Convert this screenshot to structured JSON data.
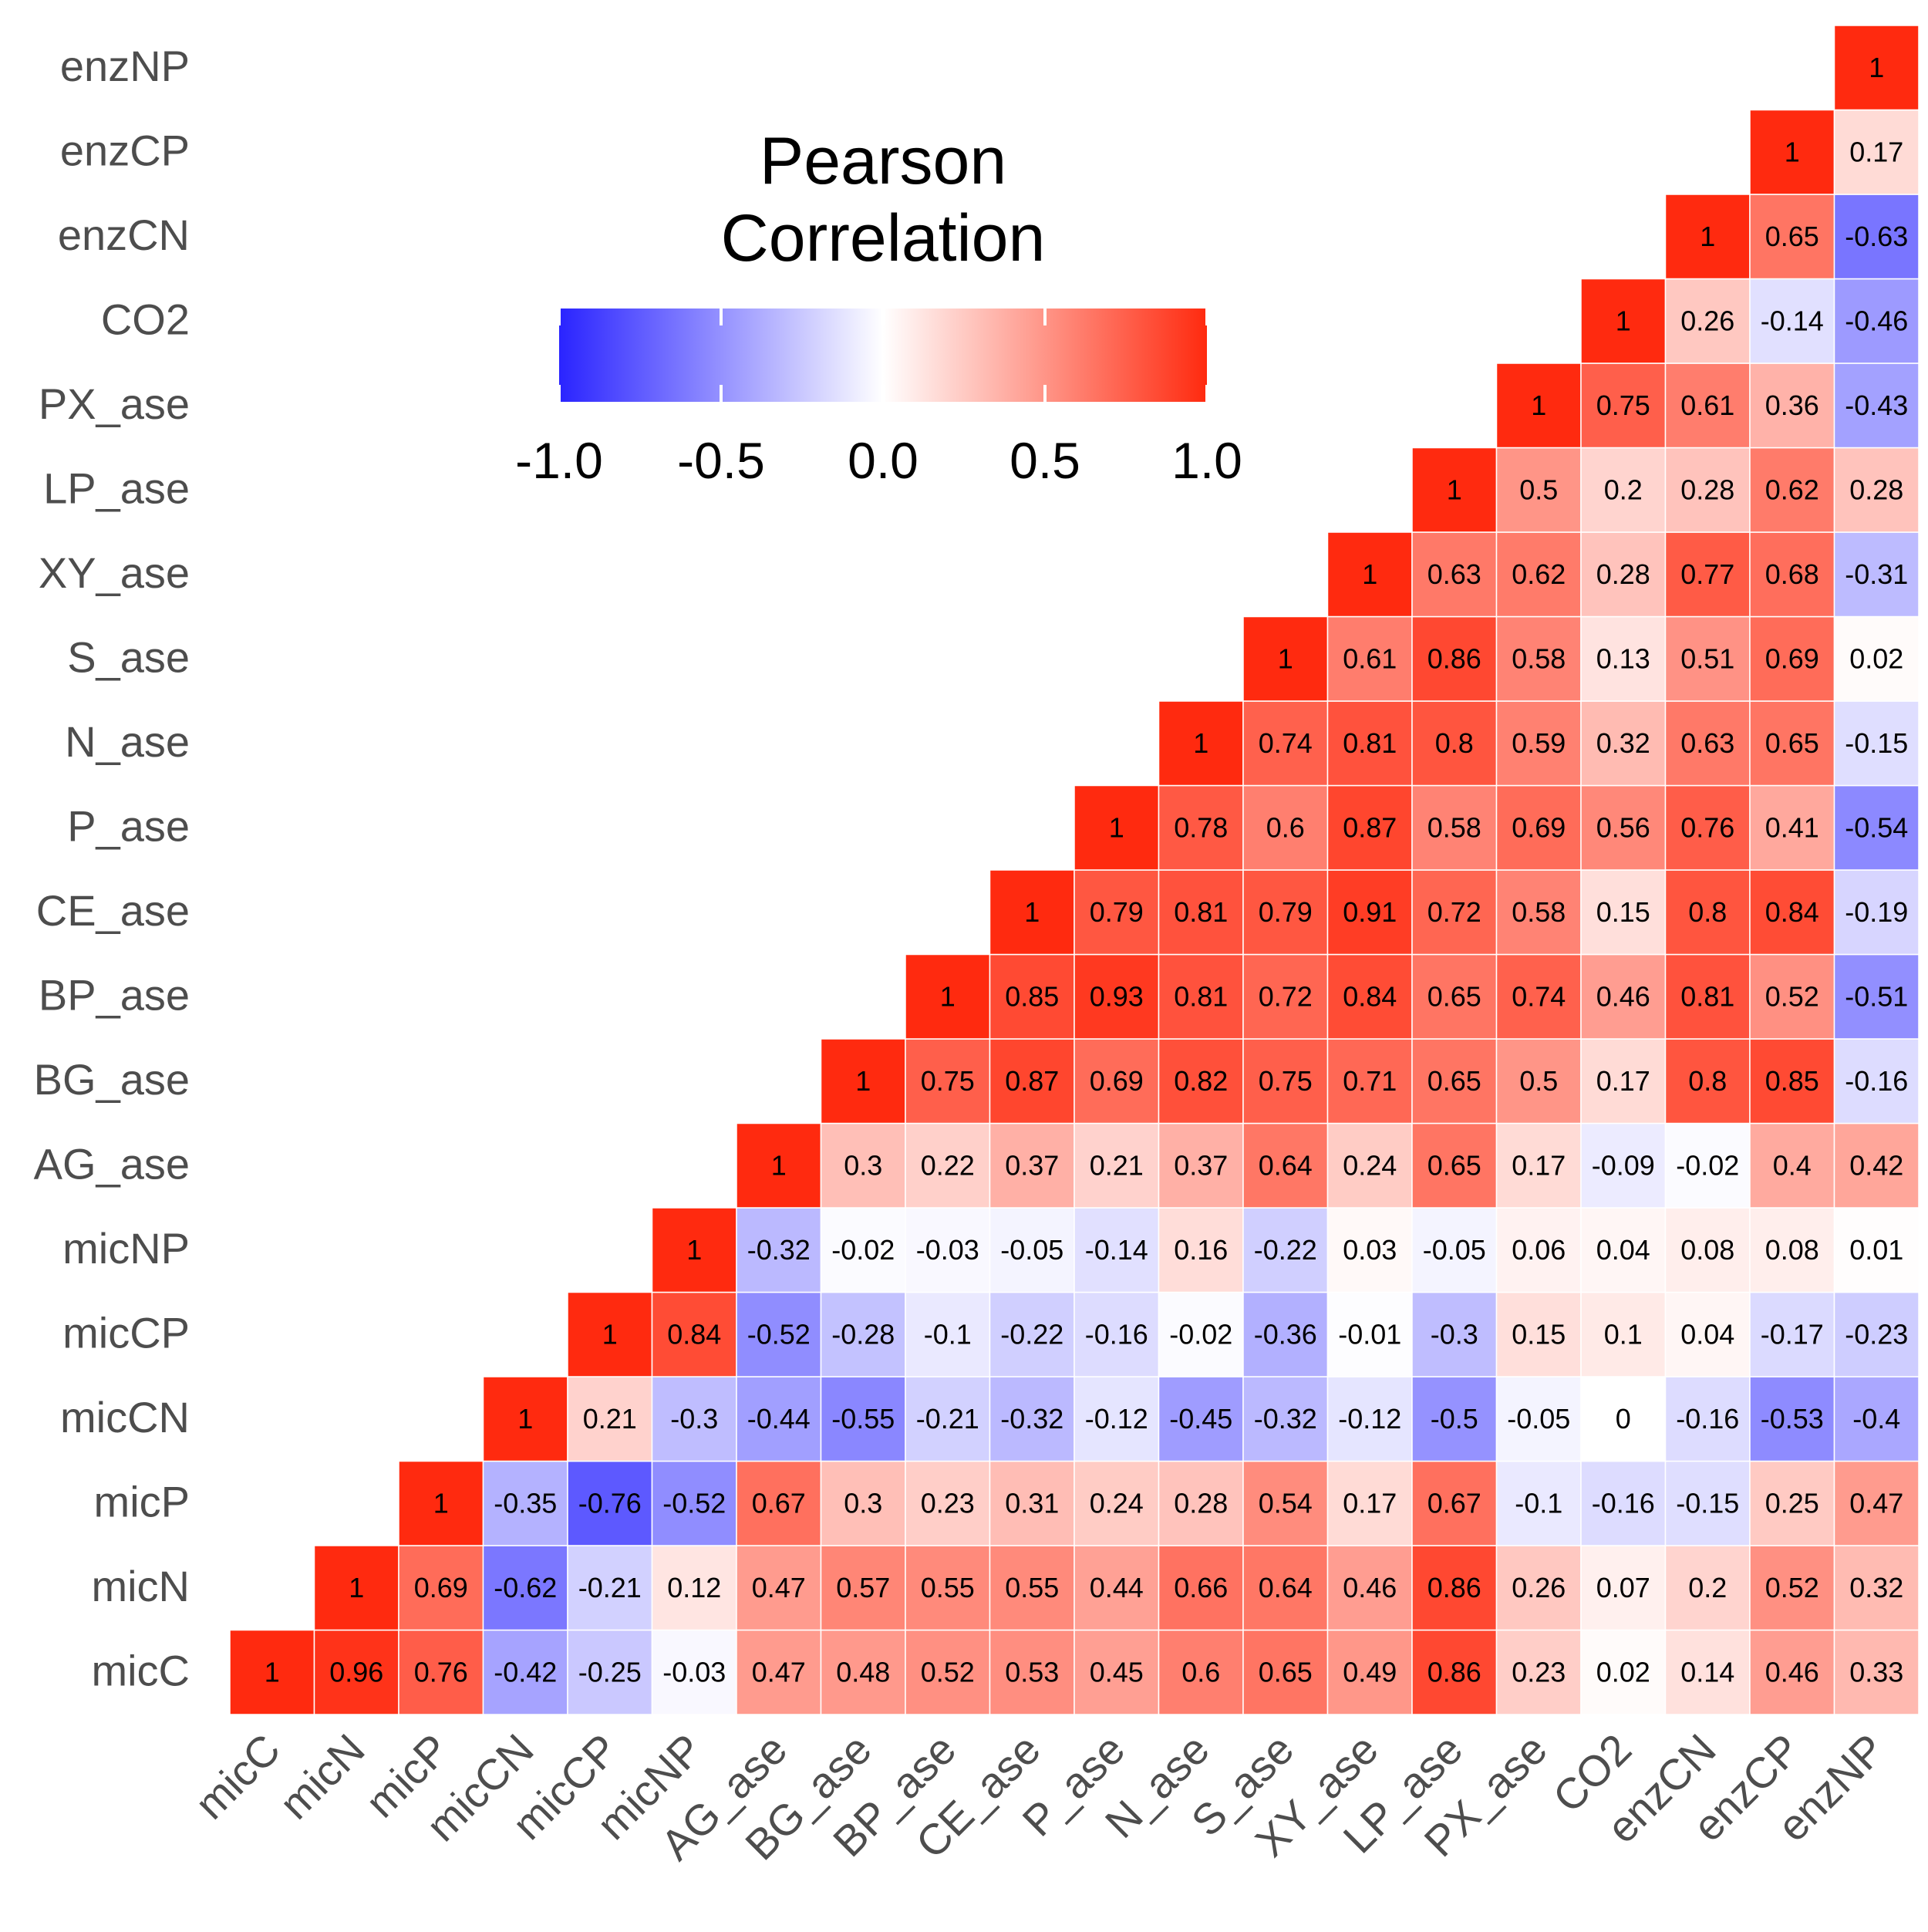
{
  "chart_data": {
    "type": "heatmap",
    "title": "",
    "legend": {
      "title": "Pearson\nCorrelation",
      "ticks": [
        "-1.0",
        "-0.5",
        "0.0",
        "0.5",
        "1.0"
      ],
      "tick_values": [
        -1.0,
        -0.5,
        0.0,
        0.5,
        1.0
      ],
      "range": [
        -1,
        1
      ],
      "colors": {
        "low": "#2a24ff",
        "mid": "#ffffff",
        "high": "#ff2a0f"
      },
      "placement": "top-left"
    },
    "grid": false,
    "variables": [
      "micC",
      "micN",
      "micP",
      "micCN",
      "micCP",
      "micNP",
      "AG_ase",
      "BG_ase",
      "BP_ase",
      "CE_ase",
      "P_ase",
      "N_ase",
      "S_ase",
      "XY_ase",
      "LP_ase",
      "PX_ase",
      "CO2",
      "enzCN",
      "enzCP",
      "enzNP"
    ],
    "columns": [
      {
        "name": "micC",
        "values": [
          "1"
        ]
      },
      {
        "name": "micN",
        "values": [
          "0.96",
          "1"
        ]
      },
      {
        "name": "micP",
        "values": [
          "0.76",
          "0.69",
          "1"
        ]
      },
      {
        "name": "micCN",
        "values": [
          "-0.42",
          "-0.62",
          "-0.35",
          "1"
        ]
      },
      {
        "name": "micCP",
        "values": [
          "-0.25",
          "-0.21",
          "-0.76",
          "0.21",
          "1"
        ]
      },
      {
        "name": "micNP",
        "values": [
          "-0.03",
          "0.12",
          "-0.52",
          "-0.3",
          "0.84",
          "1"
        ]
      },
      {
        "name": "AG_ase",
        "values": [
          "0.47",
          "0.47",
          "0.67",
          "-0.44",
          "-0.52",
          "-0.32",
          "1"
        ]
      },
      {
        "name": "BG_ase",
        "values": [
          "0.48",
          "0.57",
          "0.3",
          "-0.55",
          "-0.28",
          "-0.02",
          "0.3",
          "1"
        ]
      },
      {
        "name": "BP_ase",
        "values": [
          "0.52",
          "0.55",
          "0.23",
          "-0.21",
          "-0.1",
          "-0.03",
          "0.22",
          "0.75",
          "1"
        ]
      },
      {
        "name": "CE_ase",
        "values": [
          "0.53",
          "0.55",
          "0.31",
          "-0.32",
          "-0.22",
          "-0.05",
          "0.37",
          "0.87",
          "0.85",
          "1"
        ]
      },
      {
        "name": "P_ase",
        "values": [
          "0.45",
          "0.44",
          "0.24",
          "-0.12",
          "-0.16",
          "-0.14",
          "0.21",
          "0.69",
          "0.93",
          "0.79",
          "1"
        ]
      },
      {
        "name": "N_ase",
        "values": [
          "0.6",
          "0.66",
          "0.28",
          "-0.45",
          "-0.02",
          "0.16",
          "0.37",
          "0.82",
          "0.81",
          "0.81",
          "0.78",
          "1"
        ]
      },
      {
        "name": "S_ase",
        "values": [
          "0.65",
          "0.64",
          "0.54",
          "-0.32",
          "-0.36",
          "-0.22",
          "0.64",
          "0.75",
          "0.72",
          "0.79",
          "0.6",
          "0.74",
          "1"
        ]
      },
      {
        "name": "XY_ase",
        "values": [
          "0.49",
          "0.46",
          "0.17",
          "-0.12",
          "-0.01",
          "0.03",
          "0.24",
          "0.71",
          "0.84",
          "0.91",
          "0.87",
          "0.81",
          "0.61",
          "1"
        ]
      },
      {
        "name": "LP_ase",
        "values": [
          "0.86",
          "0.86",
          "0.67",
          "-0.5",
          "-0.3",
          "-0.05",
          "0.65",
          "0.65",
          "0.65",
          "0.72",
          "0.58",
          "0.8",
          "0.86",
          "0.63",
          "1"
        ]
      },
      {
        "name": "PX_ase",
        "values": [
          "0.23",
          "0.26",
          "-0.1",
          "-0.05",
          "0.15",
          "0.06",
          "0.17",
          "0.5",
          "0.74",
          "0.58",
          "0.69",
          "0.59",
          "0.58",
          "0.62",
          "0.5",
          "1"
        ]
      },
      {
        "name": "CO2",
        "values": [
          "0.02",
          "0.07",
          "-0.16",
          "0",
          "0.1",
          "0.04",
          "-0.09",
          "0.17",
          "0.46",
          "0.15",
          "0.56",
          "0.32",
          "0.13",
          "0.28",
          "0.2",
          "0.75",
          "1"
        ]
      },
      {
        "name": "enzCN",
        "values": [
          "0.14",
          "0.2",
          "-0.15",
          "-0.16",
          "0.04",
          "0.08",
          "-0.02",
          "0.8",
          "0.81",
          "0.8",
          "0.76",
          "0.63",
          "0.51",
          "0.77",
          "0.28",
          "0.61",
          "0.26",
          "1"
        ]
      },
      {
        "name": "enzCP",
        "values": [
          "0.46",
          "0.52",
          "0.25",
          "-0.53",
          "-0.17",
          "0.08",
          "0.4",
          "0.85",
          "0.52",
          "0.84",
          "0.41",
          "0.65",
          "0.69",
          "0.68",
          "0.62",
          "0.36",
          "-0.14",
          "0.65",
          "1"
        ]
      },
      {
        "name": "enzNP",
        "values": [
          "0.33",
          "0.32",
          "0.47",
          "-0.4",
          "-0.23",
          "0.01",
          "0.42",
          "-0.16",
          "-0.51",
          "-0.19",
          "-0.54",
          "-0.15",
          "0.02",
          "-0.31",
          "0.28",
          "-0.43",
          "-0.46",
          "-0.63",
          "0.17",
          "1"
        ]
      }
    ]
  }
}
